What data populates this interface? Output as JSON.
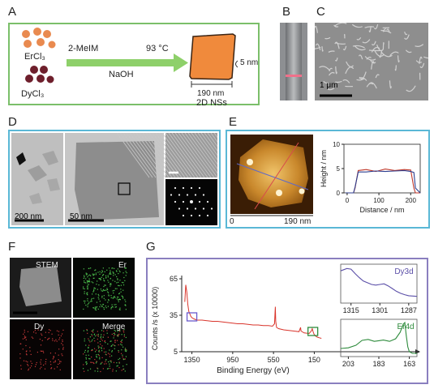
{
  "panels": {
    "A": {
      "label": "A",
      "reagent1": "ErCl₃",
      "reagent2": "DyCl₃",
      "linker": "2-MeIM",
      "temperature": "93 °C",
      "base": "NaOH",
      "thickness": "5 nm",
      "width": "190 nm",
      "product": "2D NSs",
      "colors": {
        "border": "#7bbf6a",
        "arrow": "#8ed06a",
        "er_dots": "#e98a4f",
        "dy_dots": "#6e1f2c",
        "sheet": "#f08a3c"
      }
    },
    "B": {
      "label": "B"
    },
    "C": {
      "label": "C",
      "scalebar": "1 μm"
    },
    "D": {
      "label": "D",
      "scalebar1": "200 nm",
      "scalebar2": "50 nm"
    },
    "E": {
      "label": "E",
      "afm_axis_start": "0",
      "afm_axis_end": "190 nm",
      "border_color": "#5ab8d6"
    },
    "F": {
      "label": "F",
      "tiles": [
        "STEM",
        "Er",
        "Dy",
        "Merge"
      ]
    },
    "G": {
      "label": "G",
      "border_color": "#8a7fbf",
      "inset1_label": "Dy3d",
      "inset1_ticks": [
        "1315",
        "1301",
        "1287"
      ],
      "inset2_label": "Er4d",
      "inset2_ticks": [
        "203",
        "183",
        "163"
      ]
    }
  },
  "chart_data": [
    {
      "type": "line",
      "title": "",
      "xlabel": "Distance / nm",
      "ylabel": "Height / nm",
      "xlim": [
        -10,
        230
      ],
      "ylim": [
        0,
        10
      ],
      "xticks": [
        0,
        100,
        200
      ],
      "yticks": [
        0,
        5,
        10
      ],
      "x": [
        -5,
        20,
        25,
        35,
        60,
        90,
        120,
        150,
        180,
        200,
        210,
        215,
        230
      ],
      "series": [
        {
          "color": "#c0392b",
          "values": [
            0,
            0,
            1,
            4.6,
            4.8,
            4.4,
            4.9,
            4.6,
            4.8,
            4.7,
            1,
            0,
            0
          ]
        },
        {
          "color": "#2c3e8f",
          "values": [
            0,
            0,
            1.2,
            4.3,
            4.3,
            4.5,
            4.4,
            4.5,
            4.6,
            4.4,
            4.2,
            1,
            0
          ]
        }
      ]
    },
    {
      "type": "line",
      "title": "",
      "xlabel": "Binding Energy (eV)",
      "ylabel": "Counts /s (x 10000)",
      "xlim": [
        1450,
        50
      ],
      "ylim": [
        5,
        65
      ],
      "xticks": [
        1350,
        950,
        550,
        150
      ],
      "yticks": [
        5,
        35,
        65
      ],
      "series": [
        {
          "color": "#d9342b",
          "x": [
            1420,
            1410,
            1400,
            1390,
            1380,
            1370,
            1360,
            1350,
            1330,
            1300,
            1250,
            1200,
            1150,
            1100,
            1050,
            1000,
            950,
            900,
            850,
            800,
            750,
            700,
            650,
            600,
            560,
            540,
            532,
            528,
            520,
            500,
            450,
            400,
            350,
            300,
            285,
            280,
            250,
            200,
            180,
            170,
            160,
            150,
            140,
            120,
            100,
            80
          ],
          "values": [
            46,
            60,
            54,
            44,
            38,
            36,
            34,
            33,
            32,
            31,
            31,
            30.5,
            30,
            30,
            29.5,
            29,
            28.5,
            28,
            28,
            27.5,
            27,
            27,
            26.5,
            26.5,
            26,
            28,
            42,
            30,
            25,
            24,
            23,
            22.5,
            22,
            21.5,
            25,
            22,
            20.5,
            20,
            22,
            24,
            21,
            19,
            18,
            17,
            16.5,
            16
          ]
        }
      ]
    },
    {
      "type": "line",
      "title": "Dy3d",
      "xlim": [
        1320,
        1283
      ],
      "xticks": [
        1315,
        1301,
        1287
      ],
      "series": [
        {
          "color": "#5b4fa8",
          "x": [
            1320,
            1317,
            1315,
            1313,
            1311,
            1309,
            1307,
            1305,
            1303,
            1301,
            1299,
            1297,
            1295,
            1293,
            1291,
            1289,
            1287,
            1285,
            1283
          ],
          "values": [
            0.9,
            0.97,
            0.95,
            0.82,
            0.7,
            0.6,
            0.55,
            0.5,
            0.48,
            0.5,
            0.52,
            0.46,
            0.38,
            0.3,
            0.24,
            0.2,
            0.17,
            0.16,
            0.15
          ]
        }
      ]
    },
    {
      "type": "line",
      "title": "Er4d",
      "xlim": [
        208,
        158
      ],
      "xticks": [
        203,
        183,
        163
      ],
      "series": [
        {
          "color": "#2e8b3c",
          "x": [
            208,
            203,
            198,
            194,
            190,
            186,
            183,
            180,
            176,
            172,
            169,
            167,
            166,
            165,
            164,
            163,
            161,
            158
          ],
          "values": [
            0.2,
            0.22,
            0.3,
            0.45,
            0.48,
            0.42,
            0.44,
            0.46,
            0.42,
            0.5,
            0.7,
            0.95,
            1.0,
            0.6,
            0.25,
            0.1,
            0.05,
            0.05
          ]
        }
      ]
    }
  ]
}
